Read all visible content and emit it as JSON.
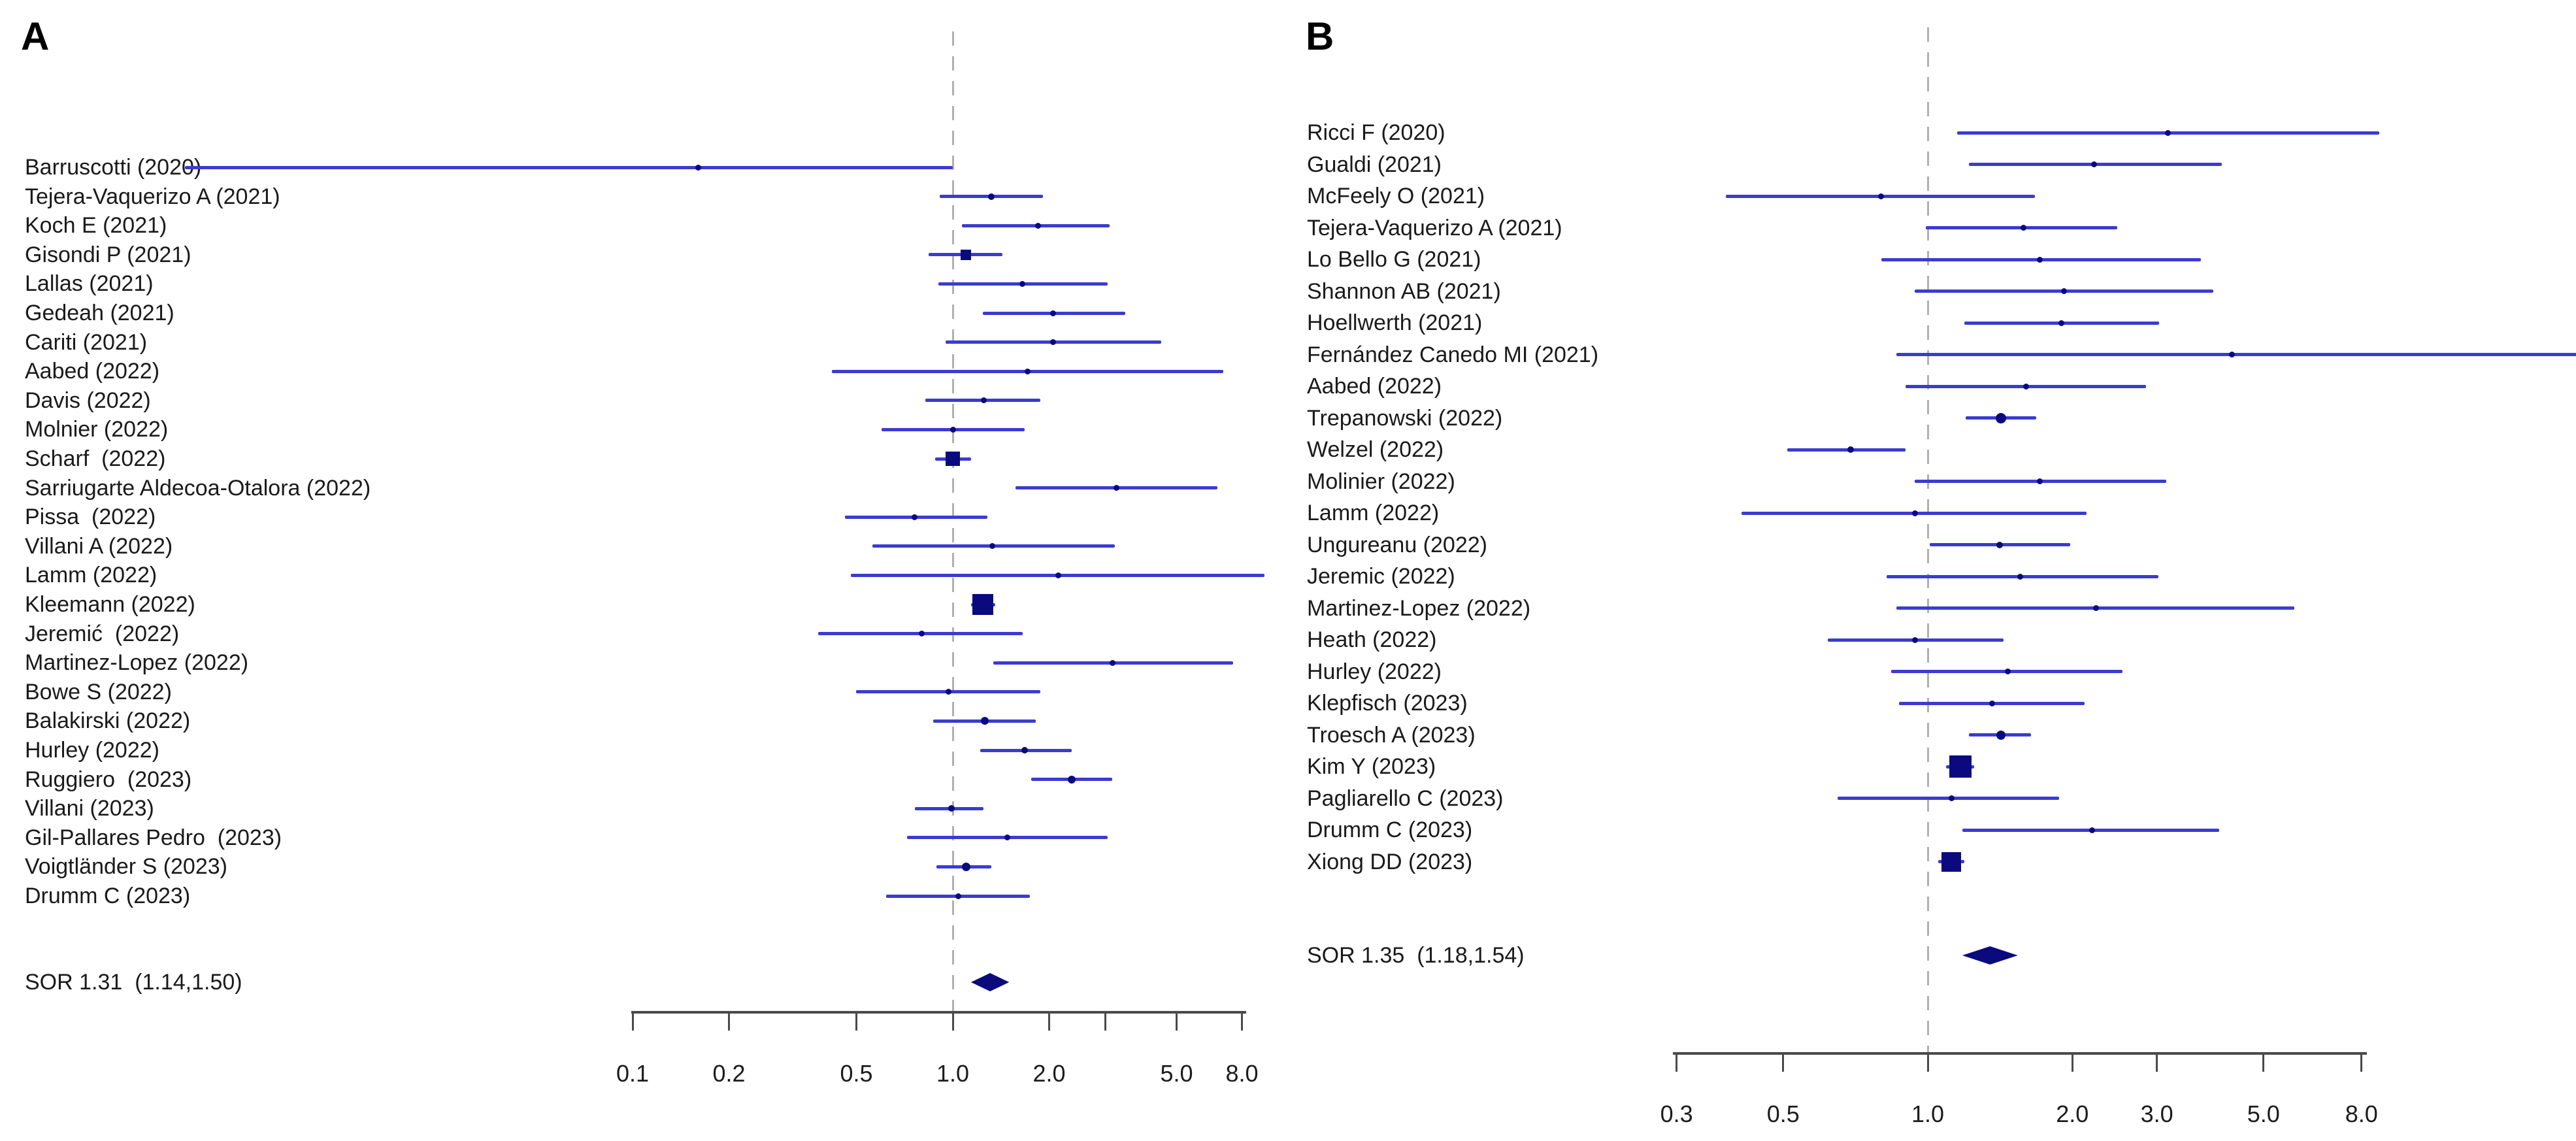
{
  "colors": {
    "ci_line": "#3b3bd0",
    "marker": "#0a0a7e",
    "dashed_ref": "#b0b0b0",
    "axis": "#4a4a4a",
    "text": "#1a1a1a"
  },
  "chart_data": [
    {
      "type": "scatter",
      "variant": "forest-plot",
      "panel": "A",
      "x_scale": "log",
      "x_range": [
        0.1,
        8.0
      ],
      "reference_line": 1.0,
      "grid": false,
      "xticks": [
        {
          "v": 0.1,
          "label": "0.1"
        },
        {
          "v": 0.2,
          "label": "0.2"
        },
        {
          "v": 0.5,
          "label": "0.5"
        },
        {
          "v": 1.0,
          "label": "1.0"
        },
        {
          "v": 2.0,
          "label": "2.0"
        },
        {
          "v": 3.0,
          "label": ""
        },
        {
          "v": 5.0,
          "label": "5.0"
        },
        {
          "v": 8.0,
          "label": "8.0"
        }
      ],
      "studies": [
        {
          "name": "Barruscotti (2020)",
          "est": 0.16,
          "lo": 0.004,
          "hi": 1.0,
          "w": 9,
          "shape": "dot"
        },
        {
          "name": "Tejera-Vaquerizo A (2021)",
          "est": 1.32,
          "lo": 0.91,
          "hi": 1.91,
          "w": 10,
          "shape": "dot"
        },
        {
          "name": "Koch E (2021)",
          "est": 1.85,
          "lo": 1.07,
          "hi": 3.09,
          "w": 9,
          "shape": "dot"
        },
        {
          "name": "Gisondi P (2021)",
          "est": 1.1,
          "lo": 0.84,
          "hi": 1.43,
          "w": 16,
          "shape": "square"
        },
        {
          "name": "Lallas (2021)",
          "est": 1.65,
          "lo": 0.9,
          "hi": 3.05,
          "w": 9,
          "shape": "dot"
        },
        {
          "name": "Gedeah (2021)",
          "est": 2.06,
          "lo": 1.24,
          "hi": 3.46,
          "w": 9,
          "shape": "dot"
        },
        {
          "name": "Cariti (2021)",
          "est": 2.06,
          "lo": 0.95,
          "hi": 4.48,
          "w": 9,
          "shape": "dot"
        },
        {
          "name": "Aabed (2022)",
          "est": 1.71,
          "lo": 0.42,
          "hi": 7.0,
          "w": 9,
          "shape": "dot"
        },
        {
          "name": "Davis (2022)",
          "est": 1.25,
          "lo": 0.82,
          "hi": 1.88,
          "w": 9,
          "shape": "dot"
        },
        {
          "name": "Molnier (2022)",
          "est": 1.0,
          "lo": 0.6,
          "hi": 1.68,
          "w": 9,
          "shape": "dot"
        },
        {
          "name": "Scharf  (2022)",
          "est": 1.0,
          "lo": 0.88,
          "hi": 1.14,
          "w": 22,
          "shape": "square"
        },
        {
          "name": "Sarriugarte Aldecoa-Otalora (2022)",
          "est": 3.25,
          "lo": 1.57,
          "hi": 6.7,
          "w": 9,
          "shape": "dot"
        },
        {
          "name": "Pissa  (2022)",
          "est": 0.76,
          "lo": 0.46,
          "hi": 1.28,
          "w": 9,
          "shape": "dot"
        },
        {
          "name": "Villani A (2022)",
          "est": 1.33,
          "lo": 0.56,
          "hi": 3.2,
          "w": 9,
          "shape": "dot"
        },
        {
          "name": "Lamm (2022)",
          "est": 2.14,
          "lo": 0.48,
          "hi": 9.4,
          "w": 9,
          "shape": "dot"
        },
        {
          "name": "Kleemann (2022)",
          "est": 1.24,
          "lo": 1.14,
          "hi": 1.36,
          "w": 32,
          "shape": "square"
        },
        {
          "name": "Jeremić  (2022)",
          "est": 0.8,
          "lo": 0.38,
          "hi": 1.65,
          "w": 9,
          "shape": "dot"
        },
        {
          "name": "Martinez-Lopez (2022)",
          "est": 3.15,
          "lo": 1.34,
          "hi": 7.5,
          "w": 9,
          "shape": "dot"
        },
        {
          "name": "Bowe S (2022)",
          "est": 0.97,
          "lo": 0.5,
          "hi": 1.88,
          "w": 9,
          "shape": "dot"
        },
        {
          "name": "Balakirski (2022)",
          "est": 1.26,
          "lo": 0.87,
          "hi": 1.82,
          "w": 12,
          "shape": "dot"
        },
        {
          "name": "Hurley (2022)",
          "est": 1.68,
          "lo": 1.22,
          "hi": 2.35,
          "w": 10,
          "shape": "dot"
        },
        {
          "name": "Ruggiero  (2023)",
          "est": 2.35,
          "lo": 1.76,
          "hi": 3.15,
          "w": 12,
          "shape": "dot"
        },
        {
          "name": "Villani (2023)",
          "est": 0.99,
          "lo": 0.76,
          "hi": 1.25,
          "w": 10,
          "shape": "dot"
        },
        {
          "name": "Gil-Pallares Pedro  (2023)",
          "est": 1.48,
          "lo": 0.72,
          "hi": 3.05,
          "w": 9,
          "shape": "dot"
        },
        {
          "name": "Voigtländer S (2023)",
          "est": 1.1,
          "lo": 0.89,
          "hi": 1.32,
          "w": 13,
          "shape": "dot"
        },
        {
          "name": "Drumm C (2023)",
          "est": 1.04,
          "lo": 0.62,
          "hi": 1.74,
          "w": 9,
          "shape": "dot"
        }
      ],
      "summary": {
        "label_text": "SOR 1.31  (1.14,1.50)",
        "est": 1.31,
        "lo": 1.14,
        "hi": 1.5
      }
    },
    {
      "type": "scatter",
      "variant": "forest-plot",
      "panel": "B",
      "x_scale": "log",
      "x_range": [
        0.3,
        8.0
      ],
      "reference_line": 1.0,
      "grid": false,
      "xticks": [
        {
          "v": 0.3,
          "label": "0.3"
        },
        {
          "v": 0.5,
          "label": "0.5"
        },
        {
          "v": 1.0,
          "label": "1.0"
        },
        {
          "v": 2.0,
          "label": "2.0"
        },
        {
          "v": 3.0,
          "label": "3.0"
        },
        {
          "v": 5.0,
          "label": "5.0"
        },
        {
          "v": 8.0,
          "label": "8.0"
        }
      ],
      "studies": [
        {
          "name": "Ricci F (2020)",
          "est": 3.16,
          "lo": 1.15,
          "hi": 8.7,
          "w": 9,
          "shape": "dot"
        },
        {
          "name": "Gualdi (2021)",
          "est": 2.22,
          "lo": 1.22,
          "hi": 4.1,
          "w": 9,
          "shape": "dot"
        },
        {
          "name": "McFeely O (2021)",
          "est": 0.8,
          "lo": 0.38,
          "hi": 1.67,
          "w": 9,
          "shape": "dot"
        },
        {
          "name": "Tejera-Vaquerizo A (2021)",
          "est": 1.58,
          "lo": 0.99,
          "hi": 2.48,
          "w": 9,
          "shape": "dot"
        },
        {
          "name": "Lo Bello G (2021)",
          "est": 1.71,
          "lo": 0.8,
          "hi": 3.7,
          "w": 9,
          "shape": "dot"
        },
        {
          "name": "Shannon AB (2021)",
          "est": 1.92,
          "lo": 0.94,
          "hi": 3.93,
          "w": 9,
          "shape": "dot"
        },
        {
          "name": "Hoellwerth (2021)",
          "est": 1.9,
          "lo": 1.19,
          "hi": 3.03,
          "w": 9,
          "shape": "dot"
        },
        {
          "name": "Fernández Canedo MI (2021)",
          "est": 4.3,
          "lo": 0.86,
          "hi": 22.6,
          "w": 9,
          "shape": "dot"
        },
        {
          "name": "Aabed (2022)",
          "est": 1.6,
          "lo": 0.9,
          "hi": 2.85,
          "w": 9,
          "shape": "dot"
        },
        {
          "name": "Trepanowski (2022)",
          "est": 1.42,
          "lo": 1.2,
          "hi": 1.68,
          "w": 16,
          "shape": "dot"
        },
        {
          "name": "Welzel (2022)",
          "est": 0.69,
          "lo": 0.51,
          "hi": 0.9,
          "w": 10,
          "shape": "dot"
        },
        {
          "name": "Molinier (2022)",
          "est": 1.71,
          "lo": 0.94,
          "hi": 3.14,
          "w": 9,
          "shape": "dot"
        },
        {
          "name": "Lamm (2022)",
          "est": 0.94,
          "lo": 0.41,
          "hi": 2.14,
          "w": 9,
          "shape": "dot"
        },
        {
          "name": "Ungureanu (2022)",
          "est": 1.41,
          "lo": 1.01,
          "hi": 1.98,
          "w": 10,
          "shape": "dot"
        },
        {
          "name": "Jeremic (2022)",
          "est": 1.56,
          "lo": 0.82,
          "hi": 3.02,
          "w": 9,
          "shape": "dot"
        },
        {
          "name": "Martinez-Lopez (2022)",
          "est": 2.24,
          "lo": 0.86,
          "hi": 5.8,
          "w": 9,
          "shape": "dot"
        },
        {
          "name": "Heath (2022)",
          "est": 0.94,
          "lo": 0.62,
          "hi": 1.44,
          "w": 9,
          "shape": "dot"
        },
        {
          "name": "Hurley (2022)",
          "est": 1.47,
          "lo": 0.84,
          "hi": 2.54,
          "w": 9,
          "shape": "dot"
        },
        {
          "name": "Klepfisch (2023)",
          "est": 1.36,
          "lo": 0.87,
          "hi": 2.12,
          "w": 9,
          "shape": "dot"
        },
        {
          "name": "Troesch A (2023)",
          "est": 1.42,
          "lo": 1.22,
          "hi": 1.64,
          "w": 14,
          "shape": "dot"
        },
        {
          "name": "Kim Y (2023)",
          "est": 1.17,
          "lo": 1.09,
          "hi": 1.25,
          "w": 34,
          "shape": "square"
        },
        {
          "name": "Pagliarello C (2023)",
          "est": 1.12,
          "lo": 0.65,
          "hi": 1.88,
          "w": 9,
          "shape": "dot"
        },
        {
          "name": "Drumm C (2023)",
          "est": 2.2,
          "lo": 1.18,
          "hi": 4.04,
          "w": 9,
          "shape": "dot"
        },
        {
          "name": "Xiong DD (2023)",
          "est": 1.12,
          "lo": 1.05,
          "hi": 1.19,
          "w": 30,
          "shape": "square"
        }
      ],
      "summary": {
        "label_text": "SOR 1.35  (1.18,1.54)",
        "est": 1.35,
        "lo": 1.18,
        "hi": 1.54
      }
    }
  ]
}
